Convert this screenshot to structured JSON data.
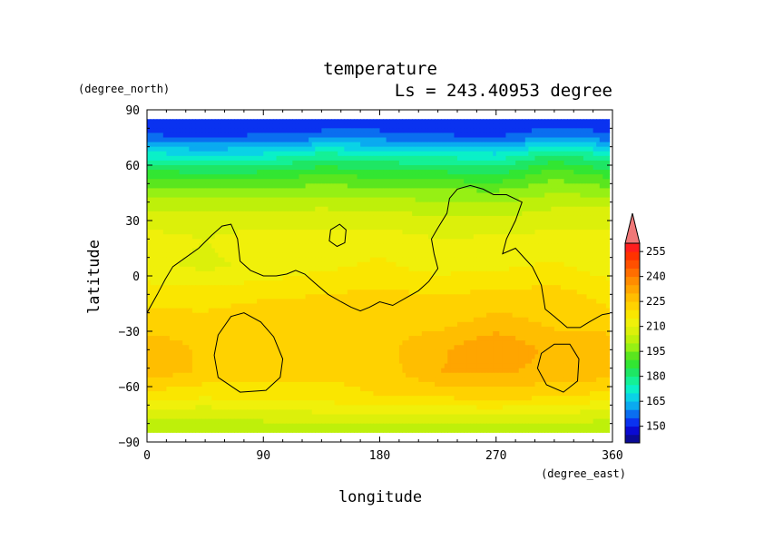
{
  "chart_data": {
    "type": "heatmap",
    "title": "temperature",
    "subtitle": "Ls = 243.40953 degree",
    "xlabel": "longitude",
    "ylabel": "latitude",
    "x_units": "(degree_east)",
    "y_units": "(degree_north)",
    "xlim": [
      0,
      360
    ],
    "ylim": [
      -90,
      90
    ],
    "data_lat_range": [
      -85,
      85
    ],
    "x_ticks": [
      0,
      90,
      180,
      270,
      360
    ],
    "y_ticks": [
      90,
      60,
      30,
      0,
      -30,
      -60,
      -90
    ],
    "grid": false,
    "colorbar": {
      "placement": "right",
      "levels": [
        140,
        145,
        150,
        155,
        160,
        165,
        170,
        175,
        180,
        185,
        190,
        195,
        200,
        205,
        210,
        215,
        220,
        225,
        230,
        235,
        240,
        245,
        250,
        255,
        260
      ],
      "tick_labels": [
        150,
        165,
        180,
        195,
        210,
        225,
        240,
        255
      ],
      "colors": [
        "#0a0a96",
        "#0a0ad2",
        "#0a32f0",
        "#0a6ef0",
        "#0aaaf0",
        "#0ad2e6",
        "#0af0c8",
        "#14f096",
        "#1ee664",
        "#32e632",
        "#5ae61e",
        "#96f014",
        "#bef00a",
        "#dcf00a",
        "#f0f00a",
        "#fae600",
        "#ffd200",
        "#ffbe00",
        "#ffa500",
        "#ff8c00",
        "#ff6e00",
        "#ff5000",
        "#ff3200",
        "#ff1e1e"
      ],
      "extend_color": "#f07878"
    },
    "samples": {
      "longitudes": [
        0,
        45,
        90,
        135,
        180,
        225,
        270,
        315,
        360
      ],
      "rows": [
        {
          "lat": 85,
          "values": [
            150,
            150,
            150,
            150,
            150,
            150,
            150,
            150,
            150
          ]
        },
        {
          "lat": 75,
          "values": [
            156,
            155,
            156,
            158,
            158,
            156,
            155,
            160,
            157
          ]
        },
        {
          "lat": 65,
          "values": [
            173,
            170,
            172,
            178,
            176,
            174,
            172,
            182,
            175
          ]
        },
        {
          "lat": 55,
          "values": [
            188,
            186,
            187,
            190,
            188,
            187,
            185,
            193,
            188
          ]
        },
        {
          "lat": 45,
          "values": [
            198,
            197,
            197,
            199,
            198,
            197,
            196,
            200,
            198
          ]
        },
        {
          "lat": 35,
          "values": [
            206,
            205,
            205,
            206,
            205,
            204,
            203,
            206,
            206
          ]
        },
        {
          "lat": 20,
          "values": [
            212,
            210,
            213,
            212,
            213,
            210,
            211,
            212,
            212
          ]
        },
        {
          "lat": 5,
          "values": [
            211,
            209,
            211,
            214,
            216,
            213,
            214,
            216,
            212
          ]
        },
        {
          "lat": -10,
          "values": [
            218,
            217,
            219,
            220,
            221,
            220,
            221,
            222,
            218
          ]
        },
        {
          "lat": -25,
          "values": [
            222,
            222,
            224,
            223,
            224,
            223,
            227,
            224,
            222
          ]
        },
        {
          "lat": -40,
          "values": [
            229,
            224,
            222,
            222,
            223,
            229,
            235,
            228,
            229
          ]
        },
        {
          "lat": -52,
          "values": [
            228,
            224,
            222,
            221,
            222,
            230,
            231,
            228,
            228
          ]
        },
        {
          "lat": -65,
          "values": [
            218,
            216,
            218,
            218,
            220,
            221,
            222,
            221,
            218
          ]
        },
        {
          "lat": -75,
          "values": [
            207,
            206,
            208,
            209,
            210,
            211,
            211,
            210,
            207
          ]
        },
        {
          "lat": -85,
          "values": [
            200,
            200,
            200,
            200,
            200,
            200,
            200,
            200,
            200
          ]
        }
      ]
    },
    "contours": [
      {
        "points": [
          [
            0,
            -20
          ],
          [
            8,
            -10
          ],
          [
            14,
            -2
          ],
          [
            20,
            5
          ],
          [
            28,
            9
          ],
          [
            40,
            15
          ],
          [
            50,
            22
          ],
          [
            58,
            27
          ],
          [
            65,
            28
          ],
          [
            70,
            20
          ],
          [
            72,
            8
          ],
          [
            80,
            3
          ],
          [
            90,
            0
          ],
          [
            100,
            0
          ],
          [
            108,
            1
          ],
          [
            115,
            3
          ],
          [
            122,
            1
          ],
          [
            130,
            -4
          ],
          [
            140,
            -10
          ],
          [
            150,
            -14
          ],
          [
            158,
            -17
          ],
          [
            165,
            -19
          ],
          [
            172,
            -17
          ],
          [
            180,
            -14
          ],
          [
            190,
            -16
          ],
          [
            200,
            -12
          ],
          [
            210,
            -8
          ],
          [
            218,
            -3
          ],
          [
            225,
            4
          ],
          [
            222,
            12
          ],
          [
            220,
            20
          ],
          [
            225,
            26
          ],
          [
            232,
            34
          ],
          [
            234,
            42
          ],
          [
            240,
            47
          ],
          [
            250,
            49
          ],
          [
            260,
            47
          ],
          [
            268,
            44
          ],
          [
            278,
            44
          ],
          [
            290,
            40
          ],
          [
            285,
            30
          ],
          [
            278,
            20
          ],
          [
            275,
            12
          ],
          [
            285,
            15
          ],
          [
            298,
            5
          ],
          [
            305,
            -5
          ],
          [
            308,
            -18
          ],
          [
            315,
            -22
          ],
          [
            325,
            -28
          ],
          [
            335,
            -28
          ],
          [
            342,
            -25
          ],
          [
            352,
            -21
          ],
          [
            360,
            -20
          ]
        ],
        "closed": false
      },
      {
        "points": [
          [
            142,
            25
          ],
          [
            149,
            28
          ],
          [
            154,
            25
          ],
          [
            153,
            18
          ],
          [
            147,
            16
          ],
          [
            141,
            19
          ]
        ],
        "closed": true
      },
      {
        "points": [
          [
            55,
            -32
          ],
          [
            65,
            -22
          ],
          [
            75,
            -20
          ],
          [
            88,
            -25
          ],
          [
            98,
            -33
          ],
          [
            105,
            -45
          ],
          [
            103,
            -55
          ],
          [
            92,
            -62
          ],
          [
            72,
            -63
          ],
          [
            55,
            -55
          ],
          [
            52,
            -43
          ]
        ],
        "closed": true
      },
      {
        "points": [
          [
            305,
            -42
          ],
          [
            315,
            -37
          ],
          [
            327,
            -37
          ],
          [
            334,
            -45
          ],
          [
            333,
            -57
          ],
          [
            322,
            -63
          ],
          [
            309,
            -59
          ],
          [
            302,
            -50
          ]
        ],
        "closed": true
      }
    ]
  }
}
